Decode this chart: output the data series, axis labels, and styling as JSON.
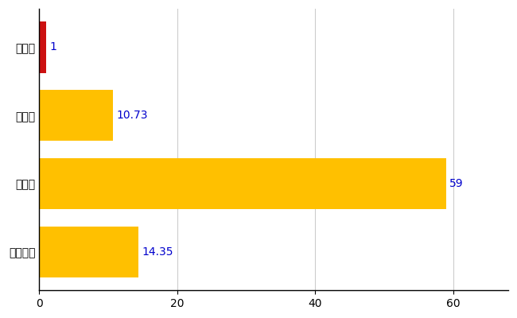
{
  "categories": [
    "普代村",
    "県平均",
    "県最大",
    "全国平均"
  ],
  "values": [
    1,
    10.73,
    59,
    14.35
  ],
  "bar_colors": [
    "#CC1111",
    "#FFC000",
    "#FFC000",
    "#FFC000"
  ],
  "value_labels": [
    "1",
    "10.73",
    "59",
    "14.35"
  ],
  "xlim": [
    0,
    68
  ],
  "xticks": [
    0,
    20,
    40,
    60
  ],
  "background_color": "#ffffff",
  "grid_color": "#cccccc",
  "bar_height": 0.75,
  "label_fontsize": 10,
  "tick_fontsize": 10,
  "value_color": "#0000CC",
  "figsize": [
    6.5,
    4.0
  ],
  "dpi": 100
}
